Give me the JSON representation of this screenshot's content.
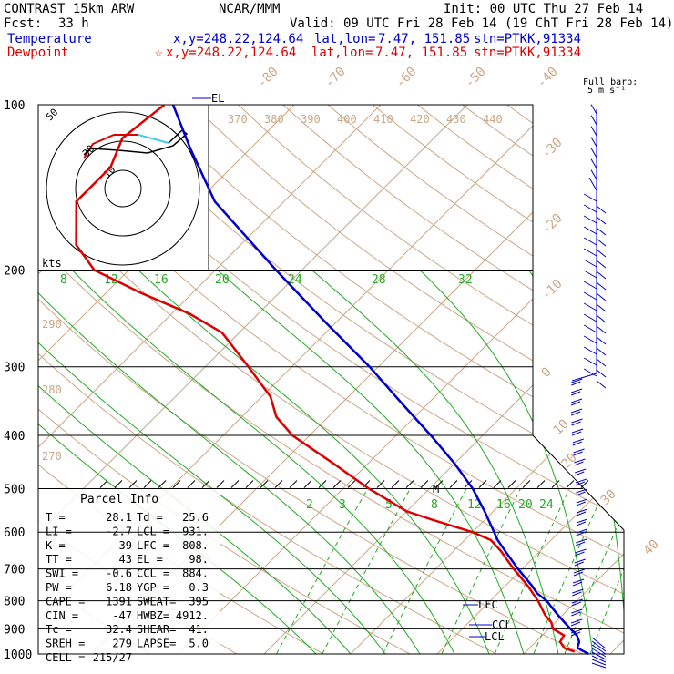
{
  "header": {
    "title": "CONTRAST 15km ARW",
    "org": "NCAR/MMM",
    "init": "Init: 00 UTC Thu 27 Feb 14",
    "fcst_label": "Fcst:",
    "fcst_value": "33 h",
    "valid": "Valid: 09 UTC Fri 28 Feb 14 (19 ChT Fri 28 Feb 14)"
  },
  "legend": {
    "temperature": {
      "label": "Temperature",
      "coords": "x,y=248.22,124.64",
      "latlon_label": "lat,lon=",
      "latlon": "7.47, 151.85",
      "station": "stn=PTKK,91334",
      "color": "#0000cc"
    },
    "dewpoint": {
      "label": "Dewpoint",
      "coords": "x,y=248.22,124.64",
      "latlon_label": "lat,lon=",
      "latlon": "7.47, 151.85",
      "station": "stn=PTKK,91334",
      "color": "#dd0000",
      "marker": "star-icon"
    }
  },
  "barb_legend": {
    "line1": "Full barb:",
    "line2": "5 m s⁻¹"
  },
  "hodograph": {
    "unit": "kts",
    "ring_labels": [
      "50",
      "30",
      "10"
    ]
  },
  "parcel_info": {
    "title": "Parcel Info",
    "rows": [
      [
        "T  =",
        "28.1",
        "Td =",
        "25.6"
      ],
      [
        "LI =",
        "-2.7",
        "LCL =",
        "931."
      ],
      [
        "K  =",
        "39",
        "LFC =",
        "808."
      ],
      [
        "TT =",
        "43",
        "EL  =",
        "98."
      ],
      [
        "SWI =",
        "-0.6",
        "CCL =",
        "884."
      ],
      [
        "PW =",
        "6.18",
        "YGP =",
        "0.3"
      ],
      [
        "CAPE =",
        "1391",
        "SWEAT=",
        "395"
      ],
      [
        "CIN =",
        "-47",
        "HWBZ=",
        "4912."
      ],
      [
        "Tc =",
        "32.4",
        "SHEAR=",
        "41."
      ],
      [
        "SREH =",
        "279",
        "LAPSE=",
        "5.0"
      ],
      [
        "CELL =",
        "215/27",
        "",
        ""
      ]
    ]
  },
  "chart_data": {
    "type": "line",
    "title": "",
    "ylabel": "",
    "y_scale": "log-pressure",
    "ylim": [
      1000,
      100
    ],
    "pressure_levels": [
      100,
      200,
      300,
      400,
      500,
      600,
      700,
      800,
      900,
      1000
    ],
    "isotherm_labels": [
      "-80",
      "-70",
      "-60",
      "-50",
      "-40",
      "-30",
      "-20",
      "-10",
      "0",
      "10",
      "20",
      "30",
      "40"
    ],
    "theta_labels_upper": [
      "370",
      "380",
      "390",
      "400",
      "410",
      "420",
      "430",
      "440"
    ],
    "theta_labels_left": [
      "290",
      "280",
      "270"
    ],
    "mixing_ratio_labels_upper": [
      "8",
      "12",
      "16",
      "20",
      "24",
      "28",
      "32"
    ],
    "mixing_ratio_labels_lower": [
      "2",
      "3",
      "5",
      "8",
      "12",
      "16",
      "20",
      "24"
    ],
    "level_markers": [
      "EL",
      "M",
      "LFC",
      "CCL",
      "LCL"
    ],
    "series": [
      {
        "name": "Temperature",
        "color": "#0000cc",
        "points": [
          [
            1000,
            27.5
          ],
          [
            975,
            25.5
          ],
          [
            950,
            25.0
          ],
          [
            925,
            24.0
          ],
          [
            900,
            22.5
          ],
          [
            875,
            21.0
          ],
          [
            850,
            19.5
          ],
          [
            825,
            18.0
          ],
          [
            800,
            16.5
          ],
          [
            775,
            14.5
          ],
          [
            750,
            13.0
          ],
          [
            700,
            9.5
          ],
          [
            650,
            6.0
          ],
          [
            620,
            3.8
          ],
          [
            600,
            2.5
          ],
          [
            550,
            -1.0
          ],
          [
            500,
            -5.0
          ],
          [
            450,
            -10.0
          ],
          [
            400,
            -16.0
          ],
          [
            350,
            -23.0
          ],
          [
            300,
            -31.0
          ],
          [
            250,
            -41.0
          ],
          [
            200,
            -53.0
          ],
          [
            150,
            -68.0
          ],
          [
            120,
            -77.0
          ],
          [
            100,
            -84.0
          ]
        ]
      },
      {
        "name": "Dewpoint",
        "color": "#dd0000",
        "points": [
          [
            990,
            25.6
          ],
          [
            975,
            24.0
          ],
          [
            950,
            22.8
          ],
          [
            925,
            22.5
          ],
          [
            900,
            20.5
          ],
          [
            875,
            19.5
          ],
          [
            850,
            18.0
          ],
          [
            800,
            15.5
          ],
          [
            750,
            12.5
          ],
          [
            700,
            9.0
          ],
          [
            650,
            5.5
          ],
          [
            620,
            3.0
          ],
          [
            600,
            0.0
          ],
          [
            570,
            -6.0
          ],
          [
            550,
            -10.0
          ],
          [
            500,
            -17.0
          ],
          [
            450,
            -24.0
          ],
          [
            400,
            -32.0
          ],
          [
            370,
            -36.0
          ],
          [
            340,
            -39.0
          ],
          [
            300,
            -45.0
          ],
          [
            260,
            -52.0
          ],
          [
            240,
            -58.0
          ],
          [
            220,
            -66.0
          ],
          [
            200,
            -74.0
          ],
          [
            180,
            -79.0
          ],
          [
            150,
            -84.0
          ],
          [
            130,
            -84.0
          ],
          [
            115,
            -86.0
          ],
          [
            100,
            -85.0
          ]
        ]
      }
    ],
    "wind_barbs": "right-edge profile"
  }
}
